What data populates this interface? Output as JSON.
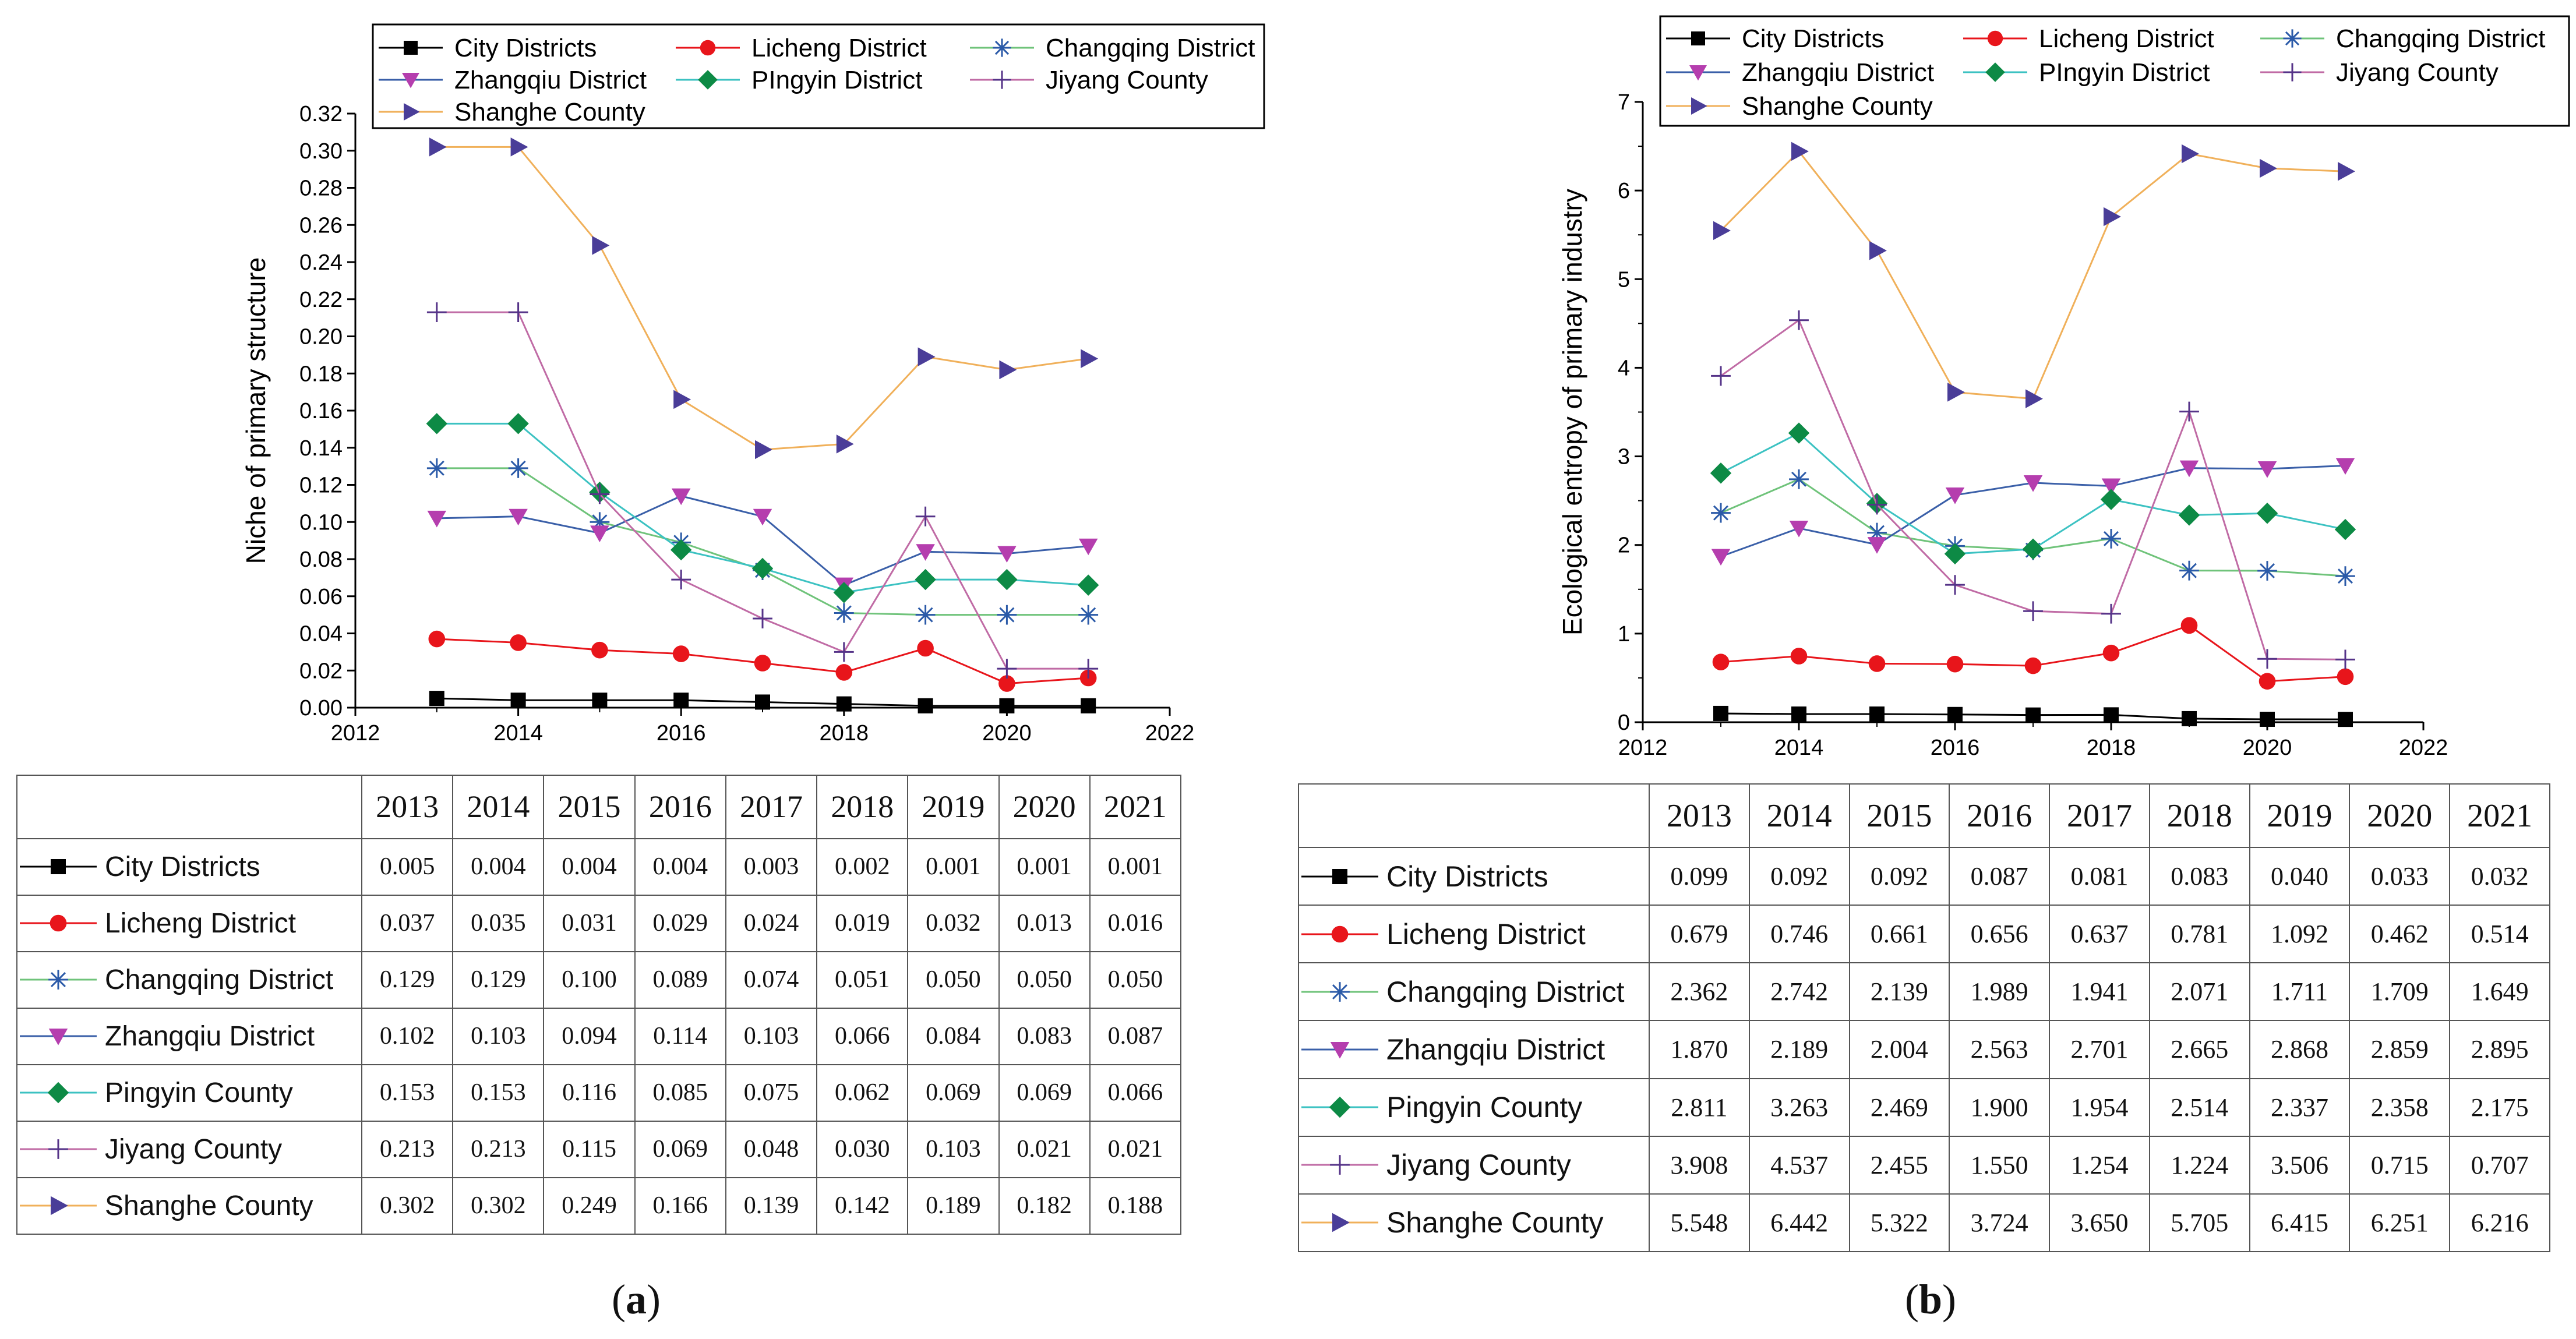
{
  "series_styles": [
    {
      "key": "city",
      "color": "#000000",
      "marker": "square"
    },
    {
      "key": "licheng",
      "color": "#e8151b",
      "marker": "circle"
    },
    {
      "key": "changqing",
      "color": "#2b5aa8",
      "marker": "asterisk",
      "line_color": "#6fc37a"
    },
    {
      "key": "zhangqiu",
      "color": "#b53eae",
      "marker": "tri-down",
      "line_color": "#3a5fa8"
    },
    {
      "key": "pingyin",
      "color": "#0d8a45",
      "marker": "diamond",
      "line_color": "#3cc2c2"
    },
    {
      "key": "jiyang",
      "color": "#553388",
      "marker": "plus",
      "line_color": "#c06ba5"
    },
    {
      "key": "shanghe",
      "color": "#4a3d98",
      "marker": "tri-right",
      "line_color": "#f0b05a"
    }
  ],
  "chart_data": [
    {
      "type": "line",
      "panel": "a",
      "panel_label": "a",
      "title": "",
      "xlabel": "",
      "ylabel": "Niche of primary structure",
      "xlim": [
        2012,
        2022
      ],
      "xticks": [
        "2012",
        "2014",
        "2016",
        "2018",
        "2020",
        "2022"
      ],
      "ylim": [
        0,
        0.32
      ],
      "yticks": [
        "0.00",
        "0.02",
        "0.04",
        "0.06",
        "0.08",
        "0.10",
        "0.12",
        "0.14",
        "0.16",
        "0.18",
        "0.20",
        "0.22",
        "0.24",
        "0.26",
        "0.28",
        "0.30",
        "0.32"
      ],
      "legend_position": "top",
      "years": [
        "2013",
        "2014",
        "2015",
        "2016",
        "2017",
        "2018",
        "2019",
        "2020",
        "2021"
      ],
      "x": [
        2013,
        2014,
        2015,
        2016,
        2017,
        2018,
        2019,
        2020,
        2021
      ],
      "series": [
        {
          "name": "City Districts",
          "table_name": "City Districts",
          "values": [
            0.005,
            0.004,
            0.004,
            0.004,
            0.003,
            0.002,
            0.001,
            0.001,
            0.001
          ],
          "table": [
            "0.005",
            "0.004",
            "0.004",
            "0.004",
            "0.003",
            "0.002",
            "0.001",
            "0.001",
            "0.001"
          ]
        },
        {
          "name": "Licheng District",
          "table_name": "Licheng District",
          "values": [
            0.037,
            0.035,
            0.031,
            0.029,
            0.024,
            0.019,
            0.032,
            0.013,
            0.016
          ],
          "table": [
            "0.037",
            "0.035",
            "0.031",
            "0.029",
            "0.024",
            "0.019",
            "0.032",
            "0.013",
            "0.016"
          ]
        },
        {
          "name": "Changqing District",
          "table_name": "Changqing District",
          "values": [
            0.129,
            0.129,
            0.1,
            0.089,
            0.074,
            0.051,
            0.05,
            0.05,
            0.05
          ],
          "table": [
            "0.129",
            "0.129",
            "0.100",
            "0.089",
            "0.074",
            "0.051",
            "0.050",
            "0.050",
            "0.050"
          ]
        },
        {
          "name": "Zhangqiu District",
          "table_name": "Zhangqiu District",
          "values": [
            0.102,
            0.103,
            0.094,
            0.114,
            0.103,
            0.066,
            0.084,
            0.083,
            0.087
          ],
          "table": [
            "0.102",
            "0.103",
            "0.094",
            "0.114",
            "0.103",
            "0.066",
            "0.084",
            "0.083",
            "0.087"
          ]
        },
        {
          "name": "PIngyin District",
          "table_name": "Pingyin County",
          "values": [
            0.153,
            0.153,
            0.116,
            0.085,
            0.075,
            0.062,
            0.069,
            0.069,
            0.066
          ],
          "table": [
            "0.153",
            "0.153",
            "0.116",
            "0.085",
            "0.075",
            "0.062",
            "0.069",
            "0.069",
            "0.066"
          ]
        },
        {
          "name": "Jiyang County",
          "table_name": "Jiyang County",
          "values": [
            0.213,
            0.213,
            0.115,
            0.069,
            0.048,
            0.03,
            0.103,
            0.021,
            0.021
          ],
          "table": [
            "0.213",
            "0.213",
            "0.115",
            "0.069",
            "0.048",
            "0.030",
            "0.103",
            "0.021",
            "0.021"
          ]
        },
        {
          "name": "Shanghe County",
          "table_name": "Shanghe County",
          "values": [
            0.302,
            0.302,
            0.249,
            0.166,
            0.139,
            0.142,
            0.189,
            0.182,
            0.188
          ],
          "table": [
            "0.302",
            "0.302",
            "0.249",
            "0.166",
            "0.139",
            "0.142",
            "0.189",
            "0.182",
            "0.188"
          ]
        }
      ]
    },
    {
      "type": "line",
      "panel": "b",
      "panel_label": "b",
      "title": "",
      "xlabel": "",
      "ylabel": "Ecological entropy of primary industry",
      "xlim": [
        2012,
        2022
      ],
      "xticks": [
        "2012",
        "2014",
        "2016",
        "2018",
        "2020",
        "2022"
      ],
      "ylim": [
        0,
        7
      ],
      "yticks": [
        "0",
        "1",
        "2",
        "3",
        "4",
        "5",
        "6",
        "7"
      ],
      "legend_position": "top",
      "years": [
        "2013",
        "2014",
        "2015",
        "2016",
        "2017",
        "2018",
        "2019",
        "2020",
        "2021"
      ],
      "x": [
        2013,
        2014,
        2015,
        2016,
        2017,
        2018,
        2019,
        2020,
        2021
      ],
      "series": [
        {
          "name": "City Districts",
          "table_name": "City Districts",
          "values": [
            0.099,
            0.092,
            0.092,
            0.087,
            0.081,
            0.083,
            0.04,
            0.033,
            0.032
          ],
          "table": [
            "0.099",
            "0.092",
            "0.092",
            "0.087",
            "0.081",
            "0.083",
            "0.040",
            "0.033",
            "0.032"
          ]
        },
        {
          "name": "Licheng District",
          "table_name": "Licheng District",
          "values": [
            0.679,
            0.746,
            0.661,
            0.656,
            0.637,
            0.781,
            1.092,
            0.462,
            0.514
          ],
          "table": [
            "0.679",
            "0.746",
            "0.661",
            "0.656",
            "0.637",
            "0.781",
            "1.092",
            "0.462",
            "0.514"
          ]
        },
        {
          "name": "Changqing District",
          "table_name": "Changqing District",
          "values": [
            2.362,
            2.742,
            2.139,
            1.989,
            1.941,
            2.071,
            1.711,
            1.709,
            1.649
          ],
          "table": [
            "2.362",
            "2.742",
            "2.139",
            "1.989",
            "1.941",
            "2.071",
            "1.711",
            "1.709",
            "1.649"
          ]
        },
        {
          "name": "Zhangqiu District",
          "table_name": "Zhangqiu District",
          "values": [
            1.87,
            2.189,
            2.004,
            2.563,
            2.701,
            2.665,
            2.868,
            2.859,
            2.895
          ],
          "table": [
            "1.870",
            "2.189",
            "2.004",
            "2.563",
            "2.701",
            "2.665",
            "2.868",
            "2.859",
            "2.895"
          ]
        },
        {
          "name": "PIngyin District",
          "table_name": "Pingyin County",
          "values": [
            2.811,
            3.263,
            2.469,
            1.9,
            1.954,
            2.514,
            2.337,
            2.358,
            2.175
          ],
          "table": [
            "2.811",
            "3.263",
            "2.469",
            "1.900",
            "1.954",
            "2.514",
            "2.337",
            "2.358",
            "2.175"
          ]
        },
        {
          "name": "Jiyang County",
          "table_name": "Jiyang County",
          "values": [
            3.908,
            4.537,
            2.455,
            1.55,
            1.254,
            1.224,
            3.506,
            0.715,
            0.707
          ],
          "table": [
            "3.908",
            "4.537",
            "2.455",
            "1.550",
            "1.254",
            "1.224",
            "3.506",
            "0.715",
            "0.707"
          ]
        },
        {
          "name": "Shanghe County",
          "table_name": "Shanghe County",
          "values": [
            5.548,
            6.442,
            5.322,
            3.724,
            3.65,
            5.705,
            6.415,
            6.251,
            6.216
          ],
          "table": [
            "5.548",
            "6.442",
            "5.322",
            "3.724",
            "3.650",
            "5.705",
            "6.415",
            "6.251",
            "6.216"
          ]
        }
      ]
    }
  ]
}
